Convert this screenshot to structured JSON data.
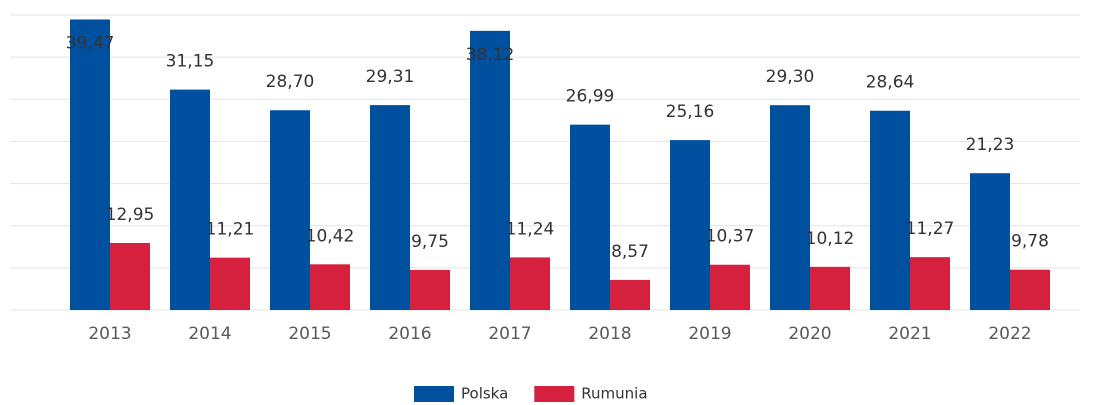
{
  "chart_data": {
    "type": "bar",
    "categories": [
      "2013",
      "2014",
      "2015",
      "2016",
      "2017",
      "2018",
      "2019",
      "2020",
      "2021",
      "2022"
    ],
    "series": [
      {
        "name": "Polska",
        "color": "#0050a0",
        "values": [
          39.47,
          31.15,
          28.7,
          29.31,
          38.12,
          26.99,
          25.16,
          29.3,
          28.64,
          21.23
        ],
        "value_labels": [
          "39,47",
          "31,15",
          "28,70",
          "29,31",
          "38,12",
          "26,99",
          "25,16",
          "29,30",
          "28,64",
          "21,23"
        ]
      },
      {
        "name": "Rumunia",
        "color": "#d6213e",
        "values": [
          12.95,
          11.21,
          10.42,
          9.75,
          11.24,
          8.57,
          10.37,
          10.12,
          11.27,
          9.78
        ],
        "value_labels": [
          "12,95",
          "11,21",
          "10,42",
          "9,75",
          "11,24",
          "8,57",
          "10,37",
          "10,12",
          "11,27",
          "9,78"
        ]
      }
    ],
    "ylim": [
      5,
      40
    ],
    "yticks": [
      5,
      10,
      15,
      20,
      25,
      30,
      35,
      40
    ],
    "grid": true,
    "legend": "bottom"
  }
}
